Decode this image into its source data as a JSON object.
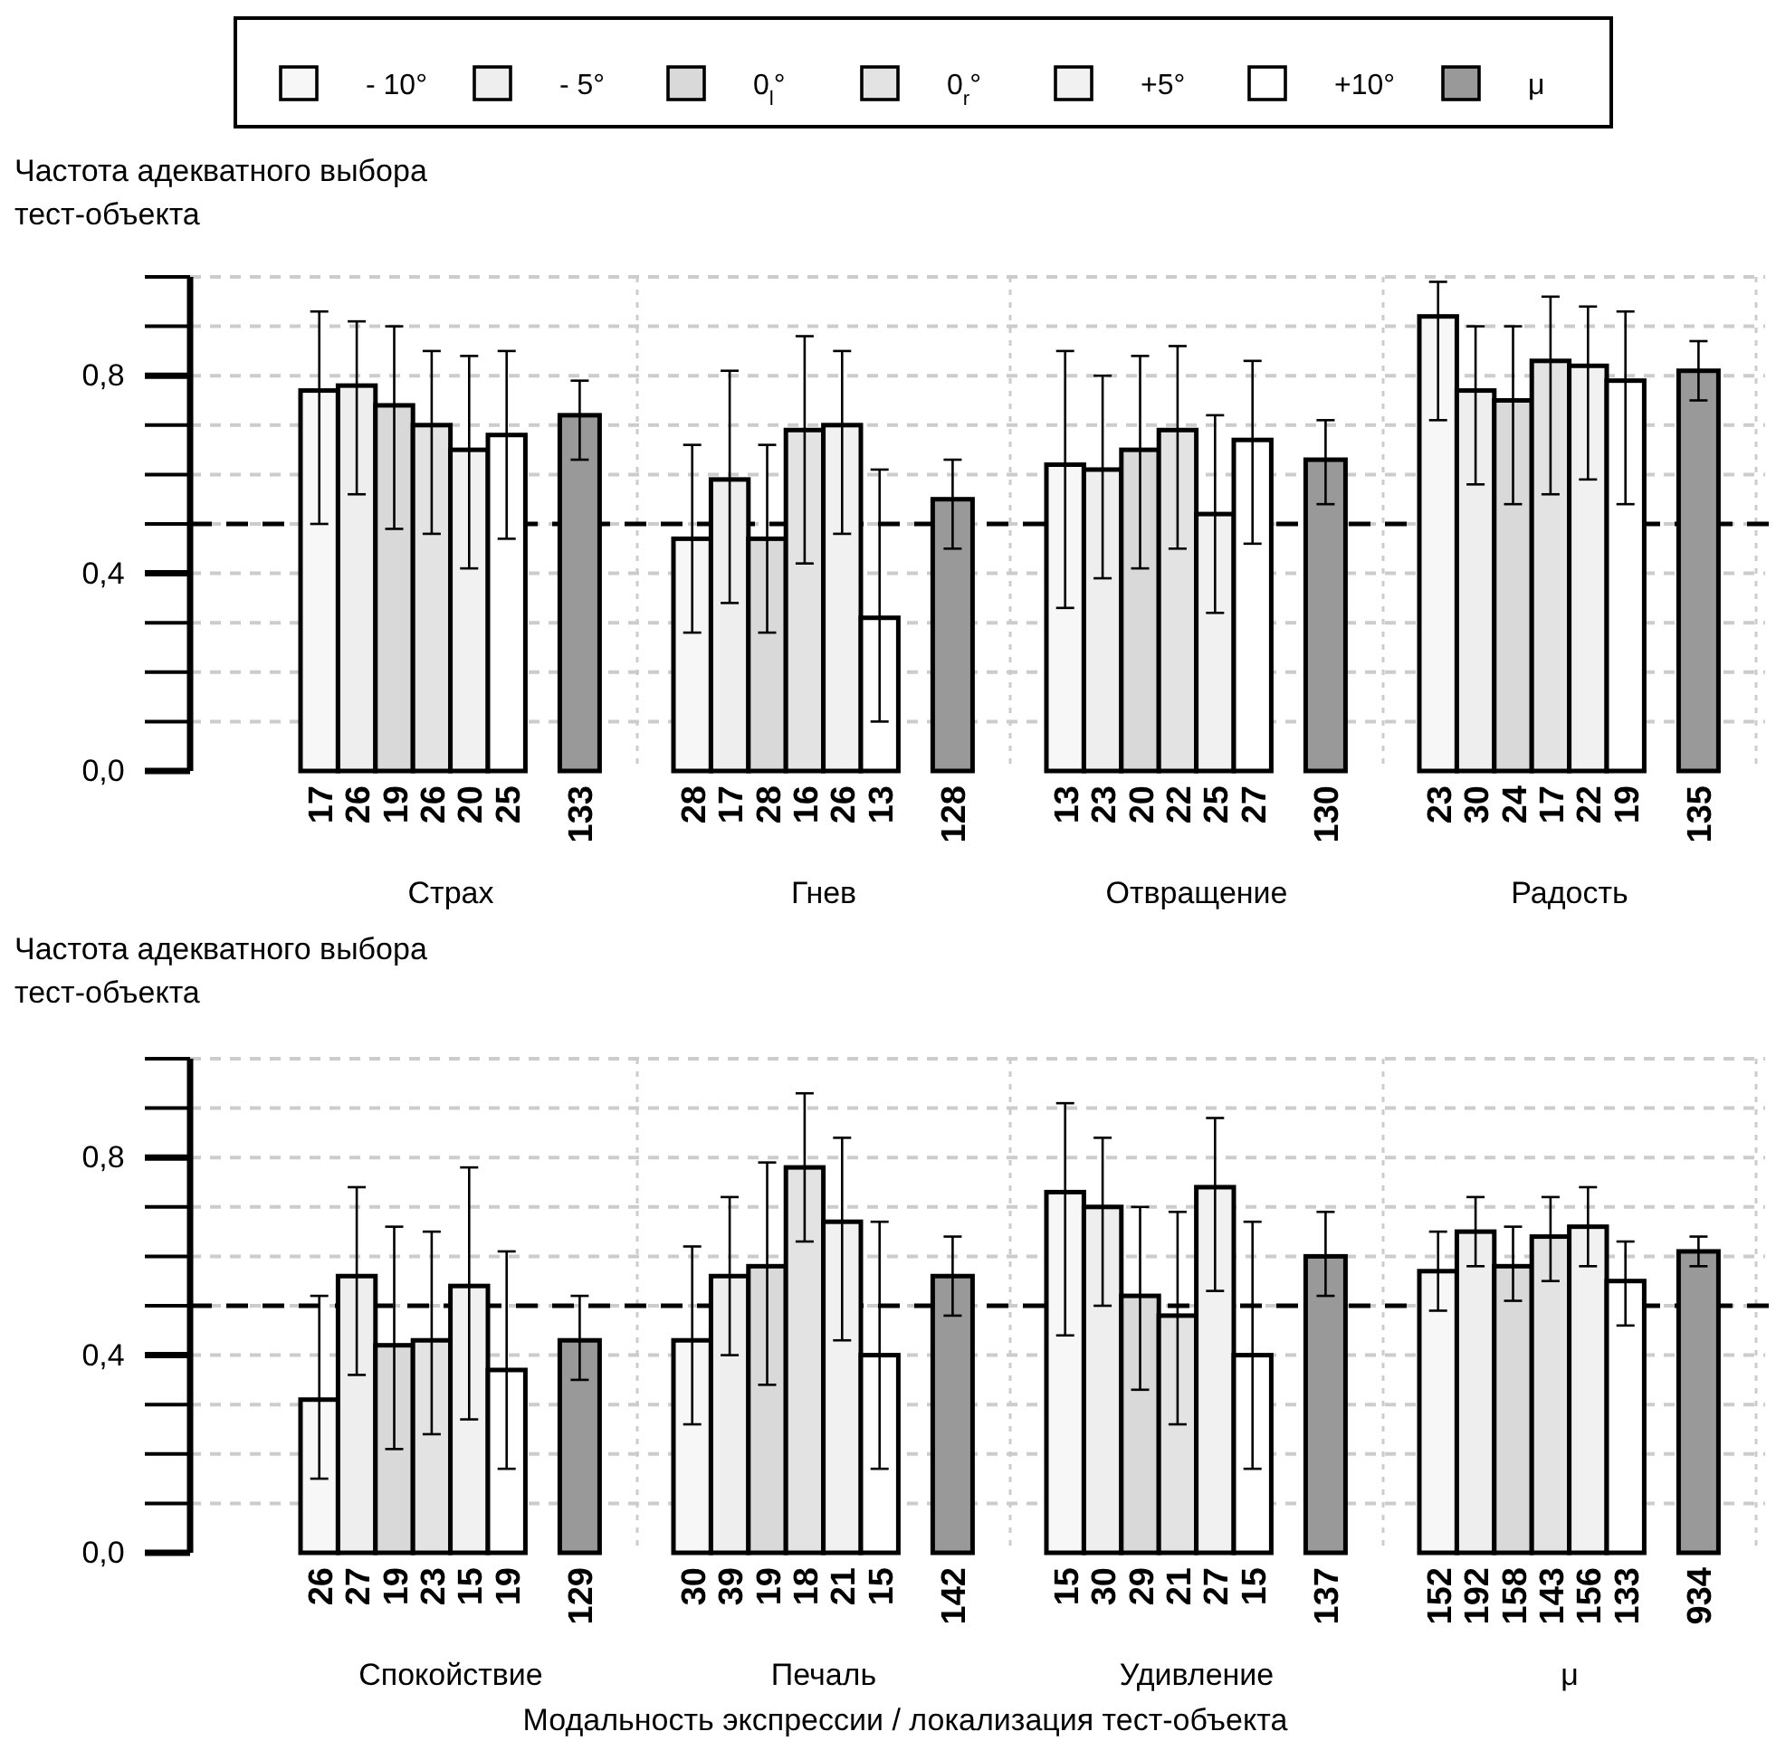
{
  "chart_data": [
    {
      "type": "bar",
      "ylabel": "Частота адекватного выбора тест-объекта",
      "categories": [
        "Страх",
        "Гнев",
        "Отвращение",
        "Радость"
      ],
      "ylim": [
        0,
        1.0
      ],
      "yticks": [
        {
          "value": 0,
          "label": "0,0"
        },
        {
          "value": 0.1,
          "label": null
        },
        {
          "value": 0.2,
          "label": null
        },
        {
          "value": 0.3,
          "label": null
        },
        {
          "value": 0.4,
          "label": "0,4"
        },
        {
          "value": 0.5,
          "label": null
        },
        {
          "value": 0.6,
          "label": null
        },
        {
          "value": 0.7,
          "label": null
        },
        {
          "value": 0.8,
          "label": "0,8"
        },
        {
          "value": 0.9,
          "label": null
        },
        {
          "value": 1.0,
          "label": null
        }
      ],
      "grid": "y",
      "legend": "top",
      "ref_lines": [
        {
          "axis": "y",
          "value": 0.5,
          "line_style": "dashed",
          "color": "#000000"
        }
      ],
      "series": [
        {
          "name": "- 10°",
          "color": "#f7f7f7",
          "values": [
            0.77,
            0.47,
            0.62,
            0.92
          ],
          "errors": [
            [
              0.5,
              0.93
            ],
            [
              0.28,
              0.66
            ],
            [
              0.33,
              0.85
            ],
            [
              0.71,
              0.99
            ]
          ]
        },
        {
          "name": "- 5°",
          "color": "#eeeeee",
          "values": [
            0.78,
            0.59,
            0.61,
            0.77
          ],
          "errors": [
            [
              0.56,
              0.91
            ],
            [
              0.34,
              0.81
            ],
            [
              0.39,
              0.8
            ],
            [
              0.58,
              0.9
            ]
          ]
        },
        {
          "name": "0$_{l}$°",
          "color": "#d9d9d9",
          "values": [
            0.74,
            0.47,
            0.65,
            0.75
          ],
          "errors": [
            [
              0.49,
              0.9
            ],
            [
              0.28,
              0.66
            ],
            [
              0.41,
              0.84
            ],
            [
              0.54,
              0.9
            ]
          ]
        },
        {
          "name": "0$_{r}$°",
          "color": "#e3e3e3",
          "values": [
            0.7,
            0.69,
            0.69,
            0.83
          ],
          "errors": [
            [
              0.48,
              0.85
            ],
            [
              0.42,
              0.88
            ],
            [
              0.45,
              0.86
            ],
            [
              0.56,
              0.96
            ]
          ]
        },
        {
          "name": "+5°",
          "color": "#f1f1f1",
          "values": [
            0.65,
            0.7,
            0.52,
            0.82
          ],
          "errors": [
            [
              0.41,
              0.84
            ],
            [
              0.48,
              0.85
            ],
            [
              0.32,
              0.72
            ],
            [
              0.59,
              0.94
            ]
          ]
        },
        {
          "name": "+10°",
          "color": "#ffffff",
          "values": [
            0.68,
            0.31,
            0.67,
            0.79
          ],
          "errors": [
            [
              0.47,
              0.85
            ],
            [
              0.1,
              0.61
            ],
            [
              0.46,
              0.83
            ],
            [
              0.54,
              0.93
            ]
          ]
        },
        {
          "name": "μ",
          "color": "#999999",
          "values": [
            0.72,
            0.55,
            0.63,
            0.81
          ],
          "errors": [
            [
              0.63,
              0.79
            ],
            [
              0.45,
              0.63
            ],
            [
              0.54,
              0.71
            ],
            [
              0.75,
              0.87
            ]
          ]
        }
      ],
      "annotations": [
        "17",
        "28",
        "13",
        "23",
        "26",
        "17",
        "23",
        "30",
        "19",
        "28",
        "20",
        "24",
        "26",
        "16",
        "22",
        "17",
        "20",
        "26",
        "25",
        "22",
        "25",
        "13",
        "27",
        "19",
        "133",
        "128",
        "130",
        "135"
      ]
    },
    {
      "type": "bar",
      "ylabel": "Частота адекватного выбора тест-объекта",
      "xlabel": "Модальность экспрессии / локализация тест-объекта",
      "categories": [
        "Спокойствие",
        "Печаль",
        "Удивление",
        "μ"
      ],
      "ylim": [
        0,
        1.0
      ],
      "yticks": [
        {
          "value": 0,
          "label": "0,0"
        },
        {
          "value": 0.1,
          "label": null
        },
        {
          "value": 0.2,
          "label": null
        },
        {
          "value": 0.3,
          "label": null
        },
        {
          "value": 0.4,
          "label": "0,4"
        },
        {
          "value": 0.5,
          "label": null
        },
        {
          "value": 0.6,
          "label": null
        },
        {
          "value": 0.7,
          "label": null
        },
        {
          "value": 0.8,
          "label": "0,8"
        },
        {
          "value": 0.9,
          "label": null
        },
        {
          "value": 1.0,
          "label": null
        }
      ],
      "grid": "y",
      "ref_lines": [
        {
          "axis": "y",
          "value": 0.5,
          "line_style": "dashed",
          "color": "#000000"
        }
      ],
      "series": [
        {
          "color": "#f7f7f7",
          "values": [
            0.31,
            0.43,
            0.73,
            0.57
          ],
          "errors": [
            [
              0.15,
              0.52
            ],
            [
              0.26,
              0.62
            ],
            [
              0.44,
              0.91
            ],
            [
              0.49,
              0.65
            ]
          ]
        },
        {
          "color": "#eeeeee",
          "values": [
            0.56,
            0.56,
            0.7,
            0.65
          ],
          "errors": [
            [
              0.36,
              0.74
            ],
            [
              0.4,
              0.72
            ],
            [
              0.5,
              0.84
            ],
            [
              0.58,
              0.72
            ]
          ]
        },
        {
          "color": "#d9d9d9",
          "values": [
            0.42,
            0.58,
            0.52,
            0.58
          ],
          "errors": [
            [
              0.21,
              0.66
            ],
            [
              0.34,
              0.79
            ],
            [
              0.33,
              0.7
            ],
            [
              0.51,
              0.66
            ]
          ]
        },
        {
          "color": "#e3e3e3",
          "values": [
            0.43,
            0.78,
            0.48,
            0.64
          ],
          "errors": [
            [
              0.24,
              0.65
            ],
            [
              0.63,
              0.93
            ],
            [
              0.26,
              0.69
            ],
            [
              0.55,
              0.72
            ]
          ]
        },
        {
          "color": "#f1f1f1",
          "values": [
            0.54,
            0.67,
            0.74,
            0.66
          ],
          "errors": [
            [
              0.27,
              0.78
            ],
            [
              0.43,
              0.84
            ],
            [
              0.53,
              0.88
            ],
            [
              0.58,
              0.74
            ]
          ]
        },
        {
          "color": "#ffffff",
          "values": [
            0.37,
            0.4,
            0.4,
            0.55
          ],
          "errors": [
            [
              0.17,
              0.61
            ],
            [
              0.17,
              0.67
            ],
            [
              0.17,
              0.67
            ],
            [
              0.46,
              0.63
            ]
          ]
        },
        {
          "color": "#999999",
          "values": [
            0.43,
            0.56,
            0.6,
            0.61
          ],
          "errors": [
            [
              0.35,
              0.52
            ],
            [
              0.48,
              0.64
            ],
            [
              0.52,
              0.69
            ],
            [
              0.58,
              0.64
            ]
          ]
        }
      ],
      "annotations": [
        "26",
        "30",
        "15",
        "152",
        "27",
        "39",
        "30",
        "192",
        "19",
        "19",
        "29",
        "158",
        "23",
        "18",
        "21",
        "143",
        "15",
        "21",
        "27",
        "156",
        "19",
        "15",
        "15",
        "133",
        "129",
        "142",
        "137",
        "934"
      ]
    }
  ]
}
